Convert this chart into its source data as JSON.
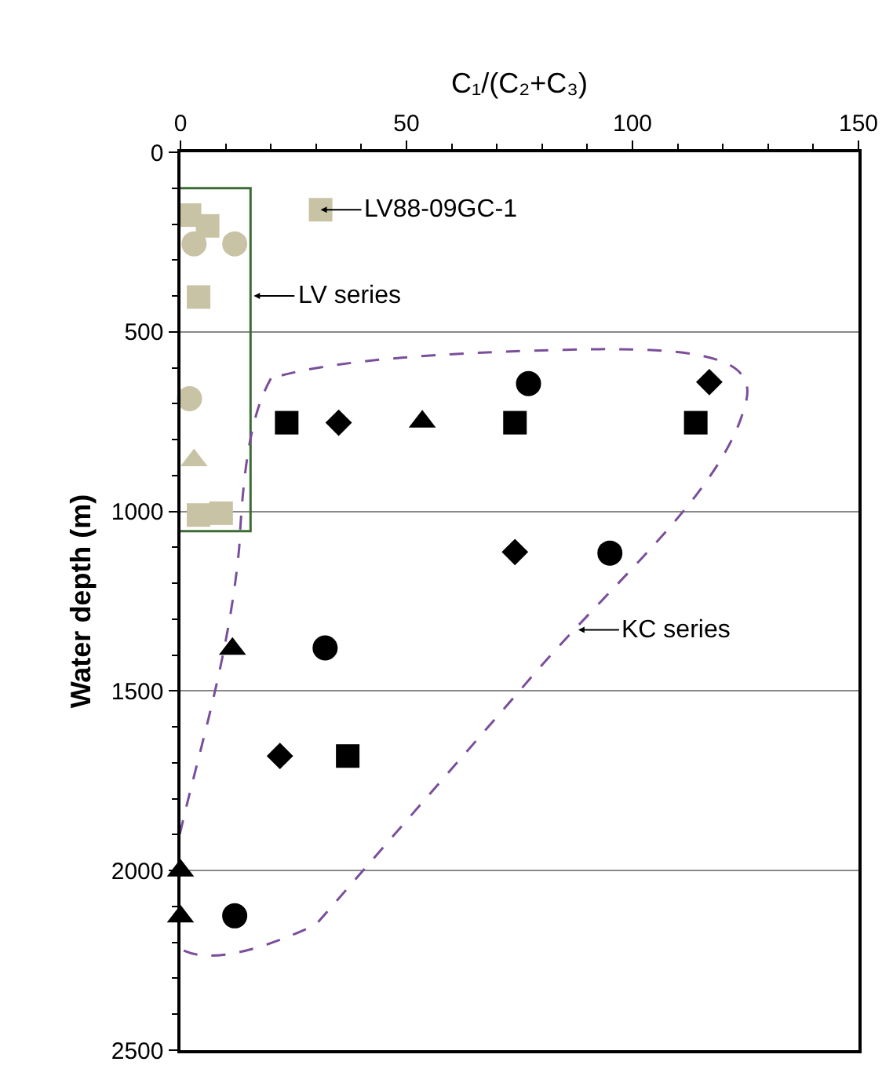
{
  "chart_data": {
    "type": "scatter",
    "xlabel": "C₁/(C₂+C₃)",
    "ylabel": "Water depth (m)",
    "xlim": [
      0,
      150
    ],
    "xticks": [
      0,
      50,
      100,
      150
    ],
    "ylim": [
      2500,
      0
    ],
    "yticks": [
      0,
      500,
      1000,
      1500,
      2000,
      2500
    ],
    "grid": "y",
    "series": [
      {
        "color": "#c9c3a5",
        "marker": "square",
        "x": [
          2,
          6,
          4,
          9
        ],
        "values": [
          175,
          205,
          1010,
          1005
        ]
      },
      {
        "color": "#c9c3a5",
        "marker": "circle",
        "x": [
          3,
          12,
          2
        ],
        "values": [
          255,
          255,
          686
        ]
      },
      {
        "color": "#c9c3a5",
        "marker": "square",
        "x": [
          31,
          4
        ],
        "values": [
          160,
          403
        ]
      },
      {
        "color": "#c9c3a5",
        "marker": "triangle",
        "x": [
          3
        ],
        "values": [
          858
        ]
      },
      {
        "color": "#000000",
        "marker": "circle",
        "x": [
          77,
          95,
          32,
          12
        ],
        "values": [
          644,
          1116,
          1380,
          2126
        ]
      },
      {
        "color": "#000000",
        "marker": "diamond",
        "x": [
          117,
          35,
          74,
          22
        ],
        "values": [
          640,
          753,
          1113,
          1681
        ]
      },
      {
        "color": "#000000",
        "marker": "square",
        "x": [
          23.5,
          37
        ],
        "values": [
          753,
          1681
        ]
      },
      {
        "color": "#000000",
        "marker": "triangle",
        "x": [
          53.5,
          11.5,
          0,
          0
        ],
        "values": [
          750,
          1383,
          2000,
          2128
        ]
      },
      {
        "color": "#000000",
        "marker": "square",
        "x": [
          74,
          114
        ],
        "values": [
          753,
          753
        ]
      }
    ],
    "annotations": [
      {
        "text": "LV88-09GC-1",
        "x": 31,
        "y": 160
      },
      "LV series",
      {
        "text": "KC series",
        "x": 88,
        "y": 1330
      }
    ]
  }
}
